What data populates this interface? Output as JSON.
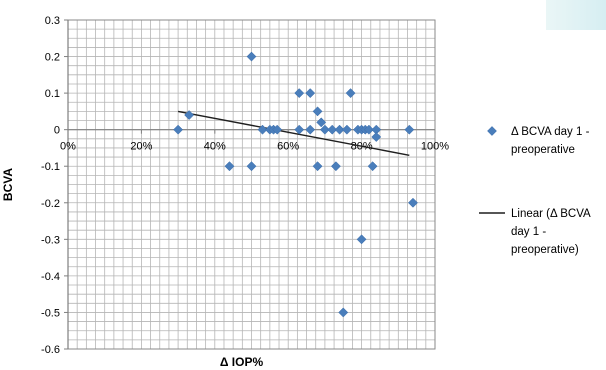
{
  "chart_data": {
    "type": "scatter",
    "title": "",
    "xlabel": "Δ IOP%",
    "ylabel": "BCVA",
    "xlim": [
      0,
      100
    ],
    "ylim": [
      -0.6,
      0.3
    ],
    "grid": true,
    "legend_position": "right",
    "x_ticks": [
      "0%",
      "20%",
      "40%",
      "60%",
      "80%",
      "100%"
    ],
    "y_ticks": [
      "0.3",
      "0.2",
      "0.1",
      "0",
      "-0.1",
      "-0.2",
      "-0.3",
      "-0.4",
      "-0.5",
      "-0.6"
    ],
    "series": [
      {
        "name": "Δ BCVA day 1 - preoperative",
        "color": "#4a7ebb",
        "marker": "diamond",
        "points": [
          {
            "x": 30,
            "y": 0
          },
          {
            "x": 33,
            "y": 0.04
          },
          {
            "x": 44,
            "y": -0.1
          },
          {
            "x": 50,
            "y": 0.2
          },
          {
            "x": 50,
            "y": -0.1
          },
          {
            "x": 53,
            "y": 0
          },
          {
            "x": 55,
            "y": 0
          },
          {
            "x": 56,
            "y": 0
          },
          {
            "x": 57,
            "y": 0
          },
          {
            "x": 63,
            "y": 0.1
          },
          {
            "x": 63,
            "y": 0
          },
          {
            "x": 66,
            "y": 0.1
          },
          {
            "x": 66,
            "y": 0
          },
          {
            "x": 68,
            "y": 0.05
          },
          {
            "x": 68,
            "y": -0.1
          },
          {
            "x": 69,
            "y": 0.02
          },
          {
            "x": 70,
            "y": 0
          },
          {
            "x": 72,
            "y": 0
          },
          {
            "x": 73,
            "y": -0.1
          },
          {
            "x": 74,
            "y": 0
          },
          {
            "x": 75,
            "y": -0.5
          },
          {
            "x": 76,
            "y": 0
          },
          {
            "x": 77,
            "y": 0.1
          },
          {
            "x": 79,
            "y": 0
          },
          {
            "x": 80,
            "y": 0
          },
          {
            "x": 80,
            "y": -0.3
          },
          {
            "x": 81,
            "y": 0
          },
          {
            "x": 82,
            "y": 0
          },
          {
            "x": 83,
            "y": -0.1
          },
          {
            "x": 84,
            "y": 0
          },
          {
            "x": 84,
            "y": -0.02
          },
          {
            "x": 93,
            "y": 0
          },
          {
            "x": 94,
            "y": -0.2
          }
        ]
      }
    ],
    "trendline": {
      "name": "Linear (Δ BCVA day 1 - preoperative)",
      "color": "#1f1f1f",
      "x_start": 30,
      "y_start": 0.05,
      "x_end": 93,
      "y_end": -0.07
    },
    "legend": {
      "series_lines": [
        "Δ BCVA  day 1 -",
        "preoperative"
      ],
      "trend_lines": [
        "Linear (Δ BCVA",
        "day 1 -",
        "preoperative)"
      ]
    }
  }
}
